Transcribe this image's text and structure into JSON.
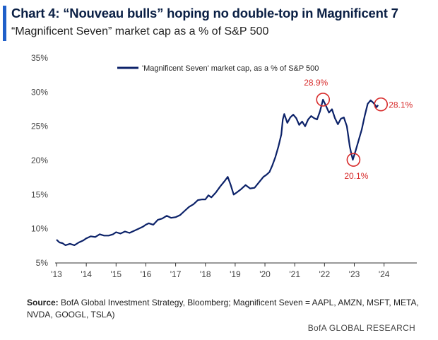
{
  "header": {
    "title": "Chart 4: “Nouveau bulls” hoping no double-top in Magnificent 7",
    "subtitle": "“Magnificent Seven” market cap as a % of S&P 500"
  },
  "footer": {
    "source_label": "Source:",
    "source_text": "BofA Global Investment Strategy, Bloomberg; Magnificent Seven = AAPL, AMZN, MSFT, META, NVDA,  GOOGL, TSLA)",
    "brand": "BofA GLOBAL RESEARCH"
  },
  "colors": {
    "series": "#0c2269",
    "annotation": "#d72a2a",
    "accent_bar": "#1f5fc9"
  },
  "chart_data": {
    "type": "line",
    "title": "Chart 4: “Nouveau bulls” hoping no double-top in Magnificent 7",
    "subtitle": "“Magnificent Seven” market cap as a % of S&P 500",
    "xlabel": "",
    "ylabel": "",
    "x_ticks": [
      "'13",
      "'14",
      "'15",
      "'16",
      "'17",
      "'18",
      "'19",
      "'20",
      "'21",
      "'22",
      "'23",
      "'24"
    ],
    "y_ticks": [
      "5%",
      "10%",
      "15%",
      "20%",
      "25%",
      "30%",
      "35%"
    ],
    "xlim": [
      2013,
      2025.1
    ],
    "ylim": [
      5,
      35
    ],
    "grid": false,
    "legend_position": "top-center",
    "series": [
      {
        "name": "'Magnificent Seven' market cap, as a % of S&P 500",
        "points": [
          [
            2013.0,
            8.4
          ],
          [
            2013.1,
            8.0
          ],
          [
            2013.2,
            7.9
          ],
          [
            2013.3,
            7.6
          ],
          [
            2013.45,
            7.8
          ],
          [
            2013.6,
            7.6
          ],
          [
            2013.75,
            8.0
          ],
          [
            2013.9,
            8.3
          ],
          [
            2014.0,
            8.6
          ],
          [
            2014.15,
            8.9
          ],
          [
            2014.3,
            8.8
          ],
          [
            2014.45,
            9.2
          ],
          [
            2014.6,
            9.0
          ],
          [
            2014.75,
            9.0
          ],
          [
            2014.9,
            9.2
          ],
          [
            2015.0,
            9.5
          ],
          [
            2015.15,
            9.3
          ],
          [
            2015.3,
            9.6
          ],
          [
            2015.45,
            9.4
          ],
          [
            2015.6,
            9.7
          ],
          [
            2015.75,
            10.0
          ],
          [
            2015.9,
            10.3
          ],
          [
            2016.0,
            10.6
          ],
          [
            2016.1,
            10.8
          ],
          [
            2016.25,
            10.6
          ],
          [
            2016.4,
            11.3
          ],
          [
            2016.55,
            11.5
          ],
          [
            2016.7,
            11.9
          ],
          [
            2016.85,
            11.6
          ],
          [
            2017.0,
            11.7
          ],
          [
            2017.15,
            12.0
          ],
          [
            2017.3,
            12.6
          ],
          [
            2017.45,
            13.2
          ],
          [
            2017.6,
            13.6
          ],
          [
            2017.75,
            14.2
          ],
          [
            2017.9,
            14.3
          ],
          [
            2018.0,
            14.3
          ],
          [
            2018.1,
            14.9
          ],
          [
            2018.2,
            14.6
          ],
          [
            2018.35,
            15.3
          ],
          [
            2018.5,
            16.2
          ],
          [
            2018.65,
            17.0
          ],
          [
            2018.75,
            17.6
          ],
          [
            2018.85,
            16.4
          ],
          [
            2018.95,
            15.0
          ],
          [
            2019.05,
            15.3
          ],
          [
            2019.2,
            15.8
          ],
          [
            2019.35,
            16.4
          ],
          [
            2019.5,
            15.9
          ],
          [
            2019.65,
            16.0
          ],
          [
            2019.8,
            16.8
          ],
          [
            2019.95,
            17.6
          ],
          [
            2020.05,
            17.9
          ],
          [
            2020.15,
            18.3
          ],
          [
            2020.25,
            19.3
          ],
          [
            2020.35,
            20.5
          ],
          [
            2020.45,
            22.0
          ],
          [
            2020.55,
            23.8
          ],
          [
            2020.6,
            26.0
          ],
          [
            2020.65,
            26.8
          ],
          [
            2020.75,
            25.5
          ],
          [
            2020.85,
            26.3
          ],
          [
            2020.95,
            26.7
          ],
          [
            2021.05,
            26.2
          ],
          [
            2021.15,
            25.2
          ],
          [
            2021.25,
            25.7
          ],
          [
            2021.35,
            25.0
          ],
          [
            2021.45,
            26.0
          ],
          [
            2021.55,
            26.5
          ],
          [
            2021.65,
            26.2
          ],
          [
            2021.75,
            26.0
          ],
          [
            2021.85,
            27.2
          ],
          [
            2021.95,
            28.9
          ],
          [
            2022.05,
            28.0
          ],
          [
            2022.15,
            27.0
          ],
          [
            2022.25,
            27.5
          ],
          [
            2022.35,
            26.2
          ],
          [
            2022.45,
            25.3
          ],
          [
            2022.55,
            26.1
          ],
          [
            2022.65,
            26.3
          ],
          [
            2022.75,
            25.0
          ],
          [
            2022.85,
            22.0
          ],
          [
            2022.9,
            21.0
          ],
          [
            2022.95,
            20.1
          ],
          [
            2023.05,
            21.5
          ],
          [
            2023.15,
            23.0
          ],
          [
            2023.25,
            24.5
          ],
          [
            2023.35,
            26.5
          ],
          [
            2023.45,
            28.3
          ],
          [
            2023.55,
            28.8
          ],
          [
            2023.65,
            28.4
          ],
          [
            2023.75,
            27.8
          ],
          [
            2023.8,
            28.1
          ]
        ]
      }
    ],
    "annotations": [
      {
        "label": "28.9%",
        "x": 2021.95,
        "y": 28.9
      },
      {
        "label": "20.1%",
        "x": 2022.95,
        "y": 20.1
      },
      {
        "label": "28.1%",
        "x": 2023.8,
        "y": 28.1
      }
    ]
  }
}
